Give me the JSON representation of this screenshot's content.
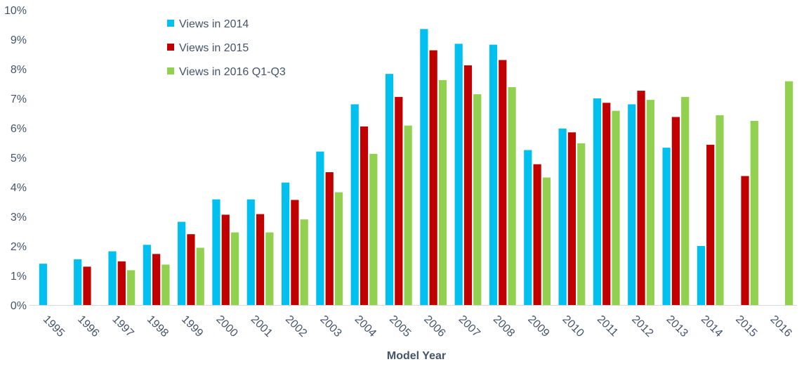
{
  "chart_data": {
    "type": "bar",
    "title": "",
    "xlabel": "Model Year",
    "ylabel": "",
    "ylim": [
      0,
      10
    ],
    "y_ticks": [
      "0%",
      "1%",
      "2%",
      "3%",
      "4%",
      "5%",
      "6%",
      "7%",
      "8%",
      "9%",
      "10%"
    ],
    "grid": false,
    "legend_position": "top-left",
    "categories": [
      "1995",
      "1996",
      "1997",
      "1998",
      "1999",
      "2000",
      "2001",
      "2002",
      "2003",
      "2004",
      "2005",
      "2006",
      "2007",
      "2008",
      "2009",
      "2010",
      "2011",
      "2012",
      "2013",
      "2014",
      "2015",
      "2016"
    ],
    "series": [
      {
        "name": "Views in 2014",
        "color": "#00c0f0",
        "values": [
          1.4,
          1.55,
          1.82,
          2.04,
          2.82,
          3.58,
          3.58,
          4.15,
          5.2,
          6.8,
          7.83,
          9.35,
          8.85,
          8.82,
          5.25,
          5.98,
          7.0,
          6.8,
          5.33,
          2.0,
          null,
          null
        ]
      },
      {
        "name": "Views in 2015",
        "color": "#c00000",
        "values": [
          null,
          1.3,
          1.48,
          1.73,
          2.4,
          3.06,
          3.08,
          3.56,
          4.5,
          6.05,
          7.05,
          8.63,
          8.12,
          8.3,
          4.77,
          5.85,
          6.85,
          7.26,
          6.37,
          5.43,
          4.37,
          null
        ]
      },
      {
        "name": "Views in 2016 Q1-Q3",
        "color": "#92d050",
        "values": [
          null,
          null,
          1.18,
          1.37,
          1.94,
          2.46,
          2.46,
          2.9,
          3.82,
          5.12,
          6.08,
          7.62,
          7.14,
          7.38,
          4.32,
          5.48,
          6.58,
          6.95,
          7.05,
          6.43,
          6.24,
          7.58
        ]
      }
    ]
  }
}
